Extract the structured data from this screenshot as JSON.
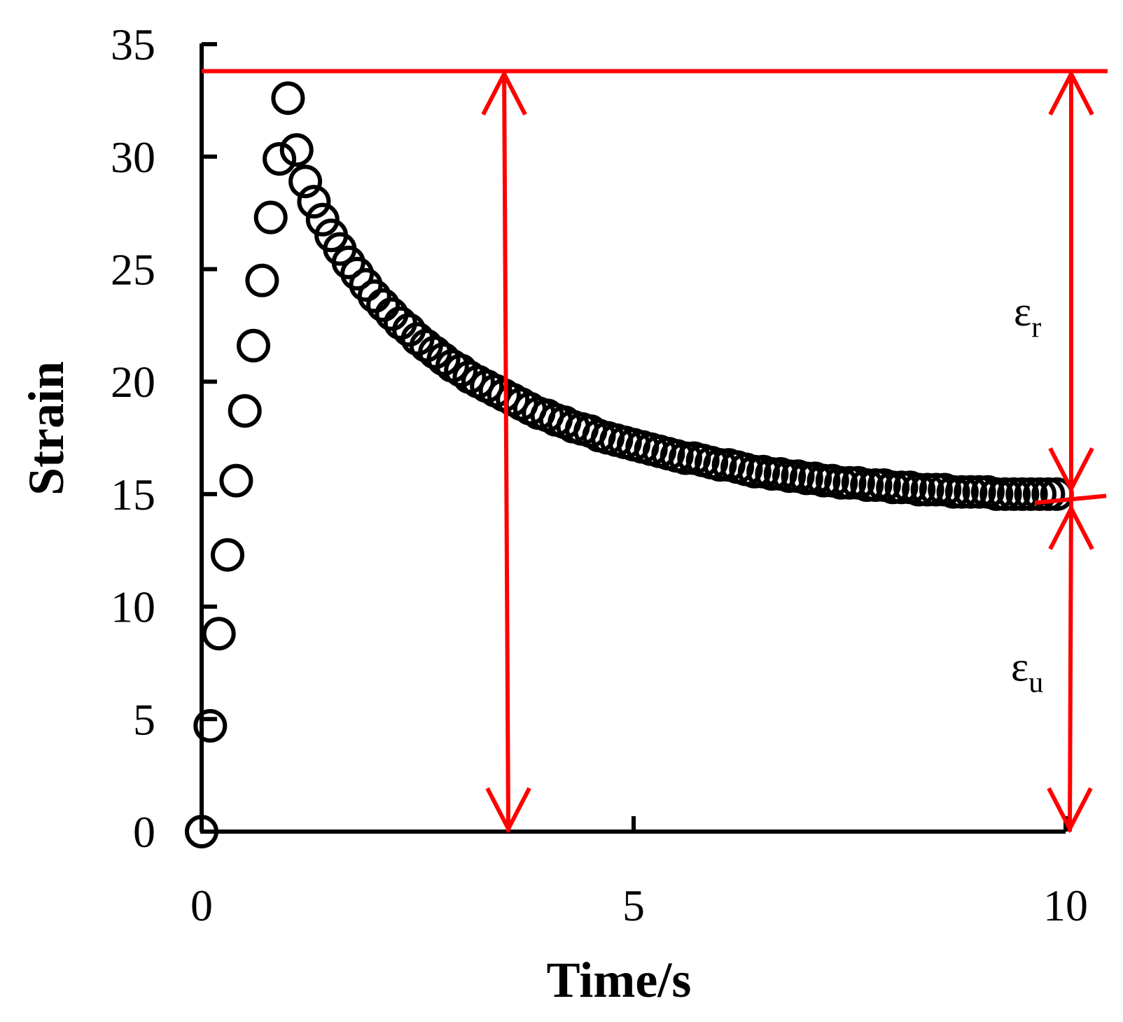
{
  "chart_data": {
    "type": "scatter",
    "title": "",
    "xlabel": "Time/s",
    "ylabel": "Strain",
    "xlim": [
      0,
      10
    ],
    "ylim": [
      0,
      35
    ],
    "x_ticks": [
      "0",
      "5",
      "10"
    ],
    "y_ticks": [
      "0",
      "5",
      "10",
      "15",
      "20",
      "25",
      "30",
      "35"
    ],
    "x_tick_values": [
      0,
      5,
      10
    ],
    "y_tick_values": [
      0,
      5,
      10,
      15,
      20,
      25,
      30,
      35
    ],
    "grid": false,
    "legend": "none",
    "marker": "open-circle",
    "series": [
      {
        "name": "strain",
        "x": [
          0.0,
          0.1,
          0.2,
          0.3,
          0.4,
          0.5,
          0.6,
          0.7,
          0.8,
          0.9,
          1.0,
          1.1,
          1.2,
          1.3,
          1.4,
          1.5,
          1.6,
          1.7,
          1.8,
          1.9,
          2.0,
          2.1,
          2.2,
          2.3,
          2.4,
          2.5,
          2.6,
          2.7,
          2.8,
          2.9,
          3.0,
          3.1,
          3.2,
          3.3,
          3.4,
          3.5,
          3.6,
          3.7,
          3.8,
          3.9,
          4.0,
          4.1,
          4.2,
          4.3,
          4.4,
          4.5,
          4.6,
          4.7,
          4.8,
          4.9,
          5.0,
          5.1,
          5.2,
          5.3,
          5.4,
          5.5,
          5.6,
          5.7,
          5.8,
          5.9,
          6.0,
          6.1,
          6.2,
          6.3,
          6.4,
          6.5,
          6.6,
          6.7,
          6.8,
          6.9,
          7.0,
          7.1,
          7.2,
          7.3,
          7.4,
          7.5,
          7.6,
          7.7,
          7.8,
          7.9,
          8.0,
          8.1,
          8.2,
          8.3,
          8.4,
          8.5,
          8.6,
          8.7,
          8.8,
          8.9,
          9.0,
          9.1,
          9.2,
          9.3,
          9.4,
          9.5,
          9.6,
          9.7,
          9.8,
          9.9
        ],
        "y": [
          0.0,
          4.7,
          8.8,
          12.3,
          15.6,
          18.7,
          21.6,
          24.5,
          27.3,
          29.9,
          32.6,
          30.3,
          28.9,
          28.0,
          27.2,
          26.5,
          25.9,
          25.3,
          24.8,
          24.3,
          23.8,
          23.4,
          23.0,
          22.6,
          22.3,
          21.9,
          21.6,
          21.3,
          21.0,
          20.7,
          20.5,
          20.2,
          20.0,
          19.8,
          19.6,
          19.4,
          19.2,
          19.0,
          18.8,
          18.6,
          18.5,
          18.3,
          18.2,
          18.0,
          17.9,
          17.8,
          17.6,
          17.5,
          17.4,
          17.3,
          17.2,
          17.1,
          17.0,
          16.9,
          16.8,
          16.7,
          16.6,
          16.6,
          16.5,
          16.4,
          16.3,
          16.3,
          16.2,
          16.1,
          16.0,
          16.0,
          15.9,
          15.9,
          15.8,
          15.8,
          15.7,
          15.7,
          15.6,
          15.6,
          15.5,
          15.5,
          15.5,
          15.4,
          15.4,
          15.4,
          15.3,
          15.3,
          15.3,
          15.2,
          15.2,
          15.2,
          15.2,
          15.1,
          15.1,
          15.1,
          15.1,
          15.1,
          15.0,
          15.0,
          15.0,
          15.0,
          15.0,
          15.0,
          15.0,
          15.0
        ]
      }
    ],
    "annotations": {
      "max_line_y": 33.8,
      "residual_y": 14.8,
      "arrow_left_x": 3.55,
      "arrow_right_x": 10.0,
      "epsilon_r": {
        "symbol": "ε",
        "sub": "r",
        "y": 22.5
      },
      "epsilon_u": {
        "symbol": "ε",
        "sub": "u",
        "y": 6.7
      },
      "line_color": "#ff0000",
      "marker_color": "#000000"
    }
  }
}
